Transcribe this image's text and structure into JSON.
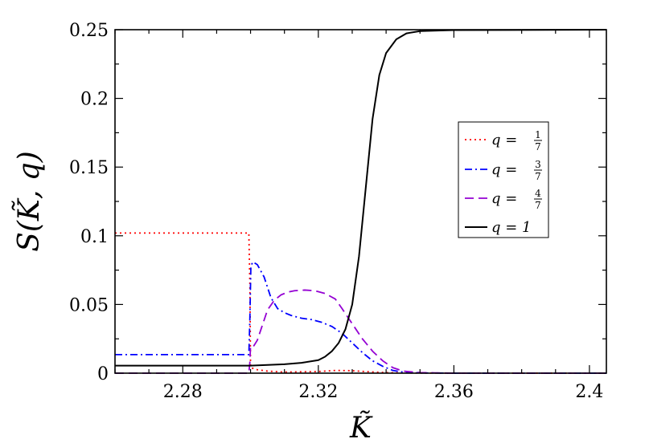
{
  "chart_data": {
    "type": "line",
    "title": "",
    "xlabel": "K̃",
    "ylabel": "S(K̃, q)",
    "xlim": [
      2.26,
      2.405
    ],
    "ylim": [
      0,
      0.25
    ],
    "xticks": [
      "2.28",
      "2.32",
      "2.36",
      "2.4"
    ],
    "yticks": [
      "0",
      "0.05",
      "0.1",
      "0.15",
      "0.2",
      "0.25"
    ],
    "grid": false,
    "legend_position": "center-right",
    "series": [
      {
        "name": "q = 1/7",
        "legend": {
          "prefix": "q =",
          "num": "1",
          "den": "7"
        },
        "color": "#ff0000",
        "style": "dotted",
        "points": [
          [
            2.26,
            0.102
          ],
          [
            2.2995,
            0.102
          ],
          [
            2.2998,
            0.065
          ],
          [
            2.3,
            0.004
          ],
          [
            2.302,
            0.0025
          ],
          [
            2.305,
            0.0015
          ],
          [
            2.31,
            0.0008
          ],
          [
            2.32,
            0.0012
          ],
          [
            2.325,
            0.002
          ],
          [
            2.33,
            0.0018
          ],
          [
            2.335,
            0.001
          ],
          [
            2.34,
            0.0004
          ],
          [
            2.35,
            0.0001
          ],
          [
            2.405,
            0.0
          ]
        ]
      },
      {
        "name": "q = 3/7",
        "legend": {
          "prefix": "q =",
          "num": "3",
          "den": "7"
        },
        "color": "#0000ff",
        "style": "dashdot",
        "points": [
          [
            2.26,
            0.0135
          ],
          [
            2.2995,
            0.0135
          ],
          [
            2.2998,
            0.04
          ],
          [
            2.3001,
            0.078
          ],
          [
            2.3007,
            0.081
          ],
          [
            2.302,
            0.079
          ],
          [
            2.304,
            0.07
          ],
          [
            2.306,
            0.055
          ],
          [
            2.308,
            0.047
          ],
          [
            2.31,
            0.044
          ],
          [
            2.312,
            0.042
          ],
          [
            2.315,
            0.04
          ],
          [
            2.318,
            0.039
          ],
          [
            2.321,
            0.037
          ],
          [
            2.324,
            0.034
          ],
          [
            2.327,
            0.029
          ],
          [
            2.33,
            0.022
          ],
          [
            2.333,
            0.015
          ],
          [
            2.336,
            0.009
          ],
          [
            2.339,
            0.005
          ],
          [
            2.342,
            0.002
          ],
          [
            2.345,
            0.0008
          ],
          [
            2.35,
            0.0002
          ],
          [
            2.36,
            0.0
          ],
          [
            2.405,
            0.0
          ]
        ]
      },
      {
        "name": "q = 4/7",
        "legend": {
          "prefix": "q =",
          "num": "4",
          "den": "7"
        },
        "color": "#9400d3",
        "style": "dashed",
        "points": [
          [
            2.26,
            0.0
          ],
          [
            2.2995,
            0.0
          ],
          [
            2.2998,
            0.008
          ],
          [
            2.3,
            0.02
          ],
          [
            2.301,
            0.02
          ],
          [
            2.302,
            0.024
          ],
          [
            2.3035,
            0.035
          ],
          [
            2.305,
            0.046
          ],
          [
            2.307,
            0.053
          ],
          [
            2.309,
            0.057
          ],
          [
            2.311,
            0.059
          ],
          [
            2.313,
            0.06
          ],
          [
            2.316,
            0.0605
          ],
          [
            2.319,
            0.06
          ],
          [
            2.322,
            0.058
          ],
          [
            2.325,
            0.054
          ],
          [
            2.327,
            0.047
          ],
          [
            2.33,
            0.036
          ],
          [
            2.333,
            0.025
          ],
          [
            2.336,
            0.016
          ],
          [
            2.339,
            0.009
          ],
          [
            2.342,
            0.004
          ],
          [
            2.345,
            0.0015
          ],
          [
            2.35,
            0.0004
          ],
          [
            2.36,
            0.0
          ],
          [
            2.405,
            0.0
          ]
        ]
      },
      {
        "name": "q = 1",
        "legend": {
          "prefix": "q =",
          "num": "1",
          "den": ""
        },
        "color": "#000000",
        "style": "solid",
        "points": [
          [
            2.26,
            0.0055
          ],
          [
            2.2995,
            0.0055
          ],
          [
            2.3,
            0.0055
          ],
          [
            2.305,
            0.006
          ],
          [
            2.31,
            0.0065
          ],
          [
            2.315,
            0.0075
          ],
          [
            2.32,
            0.0095
          ],
          [
            2.322,
            0.012
          ],
          [
            2.324,
            0.016
          ],
          [
            2.326,
            0.022
          ],
          [
            2.328,
            0.032
          ],
          [
            2.33,
            0.05
          ],
          [
            2.332,
            0.085
          ],
          [
            2.334,
            0.135
          ],
          [
            2.336,
            0.185
          ],
          [
            2.338,
            0.217
          ],
          [
            2.34,
            0.233
          ],
          [
            2.343,
            0.243
          ],
          [
            2.346,
            0.2473
          ],
          [
            2.35,
            0.249
          ],
          [
            2.36,
            0.2497
          ],
          [
            2.405,
            0.25
          ]
        ]
      }
    ]
  }
}
